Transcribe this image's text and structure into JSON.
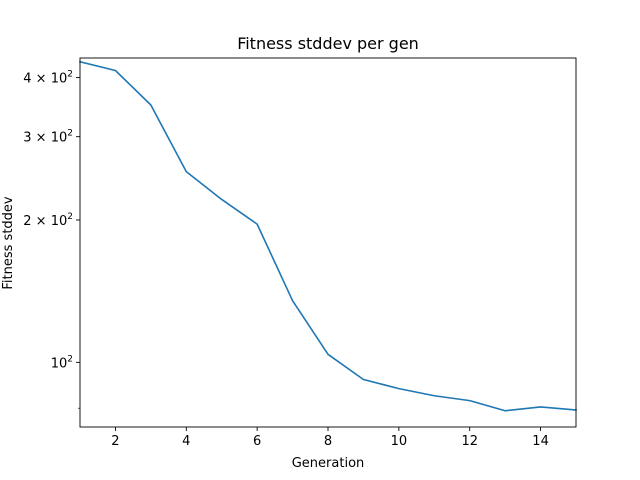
{
  "chart_data": {
    "type": "line",
    "title": "Fitness stddev per gen",
    "xlabel": "Generation",
    "ylabel": "Fitness stddev",
    "xlim": [
      1,
      15
    ],
    "ylim": [
      73,
      440
    ],
    "yscale": "log",
    "grid": false,
    "legend": "none",
    "x_ticks": [
      2,
      4,
      6,
      8,
      10,
      12,
      14
    ],
    "y_major_ticks": [
      {
        "value": 100,
        "base": "10",
        "exp": "2"
      },
      {
        "value": 200,
        "base": "2 × 10",
        "exp": "2"
      },
      {
        "value": 300,
        "base": "3 × 10",
        "exp": "2"
      },
      {
        "value": 400,
        "base": "4 × 10",
        "exp": "2"
      }
    ],
    "y_minor_ticks": [
      80
    ],
    "series": [
      {
        "color": "#1f77b4",
        "x": [
          1,
          2,
          3,
          4,
          5,
          6,
          7,
          8,
          9,
          10,
          11,
          12,
          13,
          14,
          15
        ],
        "y": [
          432,
          414,
          350,
          253,
          221,
          196,
          135,
          104,
          92,
          88,
          85,
          83,
          79,
          80.5,
          79.3
        ]
      }
    ]
  }
}
